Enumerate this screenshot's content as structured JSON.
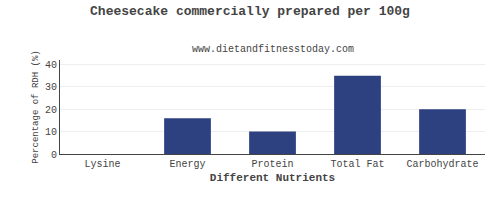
{
  "chart_data": {
    "type": "bar",
    "title": "Cheesecake commercially prepared per 100g",
    "subtitle": "www.dietandfitnesstoday.com",
    "xlabel": "Different Nutrients",
    "ylabel": "Percentage of RDH (%)",
    "categories": [
      "Lysine",
      "Energy",
      "Protein",
      "Total Fat",
      "Carbohydrate"
    ],
    "values": [
      0,
      16,
      10,
      35,
      20
    ],
    "color": "#2d4080",
    "ylim": [
      0,
      42
    ],
    "yticks": [
      0,
      10,
      20,
      30,
      40
    ],
    "grid": true
  }
}
